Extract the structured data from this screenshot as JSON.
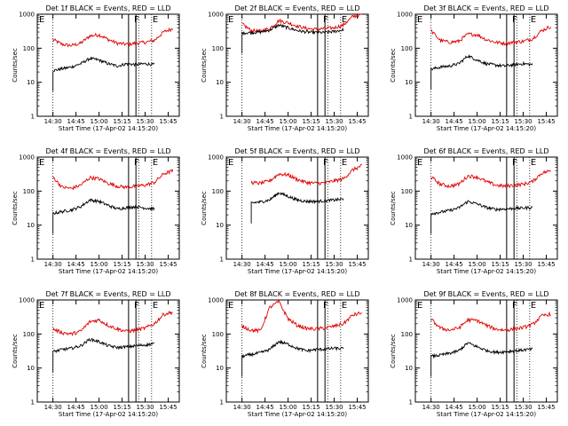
{
  "chart_data": {
    "type": "line",
    "yscale": "log",
    "ylim": [
      1,
      1000
    ],
    "yticks": [
      "1",
      "10",
      "100",
      "1000"
    ],
    "xlim": [
      14.33,
      15.87
    ],
    "xticks": [
      "14:30",
      "14:45",
      "15:00",
      "15:15",
      "15:30",
      "15:45"
    ],
    "xlabel": "Start Time (17-Apr-02 14:15:20)",
    "ylabel": "Counts/sec",
    "series_names": [
      "Events",
      "LLD"
    ],
    "series_colors": {
      "Events": "#000000",
      "LLD": "#e00000"
    },
    "markers": [
      {
        "label": "E",
        "x": 14.34
      },
      {
        "label": "F",
        "x": 15.37
      },
      {
        "label": "E",
        "x": 15.57
      }
    ],
    "vertical_lines_dotted_x": [
      14.5,
      15.43,
      15.57
    ],
    "vertical_lines_solid_x": [
      15.32,
      15.4
    ],
    "time_x": [
      14.5,
      14.6,
      14.7,
      14.8,
      14.9,
      15.0,
      15.1,
      15.2,
      15.3,
      15.4,
      15.5,
      15.6,
      15.7,
      15.8
    ],
    "panels": [
      {
        "title": "Det 1f BLACK = Events, RED = LLD",
        "events": [
          22,
          25,
          28,
          35,
          50,
          45,
          35,
          30,
          35,
          33,
          35,
          33,
          null,
          null
        ],
        "lld": [
          180,
          130,
          120,
          140,
          230,
          250,
          180,
          140,
          130,
          140,
          150,
          170,
          300,
          380
        ]
      },
      {
        "title": "Det 2f BLACK = Events, RED = LLD",
        "events": [
          280,
          290,
          300,
          340,
          480,
          400,
          330,
          300,
          290,
          290,
          310,
          350,
          null,
          null
        ],
        "lld": [
          520,
          330,
          320,
          380,
          650,
          560,
          450,
          380,
          360,
          380,
          400,
          480,
          850,
          1000
        ]
      },
      {
        "title": "Det 3f BLACK = Events, RED = LLD",
        "events": [
          24,
          28,
          30,
          35,
          60,
          45,
          35,
          32,
          30,
          33,
          35,
          33,
          null,
          null
        ],
        "lld": [
          330,
          170,
          150,
          160,
          260,
          250,
          180,
          150,
          140,
          150,
          160,
          190,
          330,
          440
        ]
      },
      {
        "title": "Det 4f BLACK = Events, RED = LLD",
        "events": [
          22,
          25,
          28,
          35,
          55,
          50,
          38,
          30,
          33,
          35,
          32,
          30,
          null,
          null
        ],
        "lld": [
          260,
          130,
          120,
          150,
          250,
          230,
          170,
          140,
          130,
          140,
          150,
          180,
          320,
          400
        ]
      },
      {
        "title": "Det 5f BLACK = Events, RED = LLD",
        "events": [
          null,
          45,
          48,
          55,
          90,
          70,
          55,
          50,
          50,
          52,
          55,
          58,
          null,
          null
        ],
        "lld": [
          null,
          180,
          170,
          200,
          320,
          300,
          220,
          180,
          170,
          175,
          200,
          230,
          420,
          560
        ]
      },
      {
        "title": "Det 6f BLACK = Events, RED = LLD",
        "events": [
          22,
          24,
          27,
          32,
          50,
          42,
          33,
          29,
          30,
          31,
          32,
          33,
          null,
          null
        ],
        "lld": [
          260,
          160,
          140,
          160,
          280,
          260,
          190,
          150,
          140,
          150,
          160,
          190,
          340,
          400
        ]
      },
      {
        "title": "Det 7f BLACK = Events, RED = LLD",
        "events": [
          30,
          35,
          38,
          45,
          70,
          60,
          45,
          40,
          42,
          45,
          48,
          52,
          null,
          null
        ],
        "lld": [
          140,
          110,
          100,
          120,
          230,
          260,
          180,
          140,
          120,
          130,
          150,
          200,
          380,
          440
        ]
      },
      {
        "title": "Det 8f BLACK = Events, RED = LLD",
        "events": [
          22,
          25,
          28,
          35,
          60,
          50,
          38,
          32,
          35,
          36,
          38,
          37,
          null,
          null
        ],
        "lld": [
          170,
          130,
          125,
          600,
          900,
          280,
          180,
          145,
          140,
          150,
          170,
          200,
          360,
          420
        ]
      },
      {
        "title": "Det 9f BLACK = Events, RED = LLD",
        "events": [
          22,
          24,
          27,
          32,
          55,
          42,
          33,
          29,
          30,
          32,
          34,
          36,
          null,
          null
        ],
        "lld": [
          270,
          150,
          130,
          150,
          260,
          250,
          180,
          140,
          130,
          140,
          155,
          190,
          340,
          390
        ]
      }
    ]
  }
}
